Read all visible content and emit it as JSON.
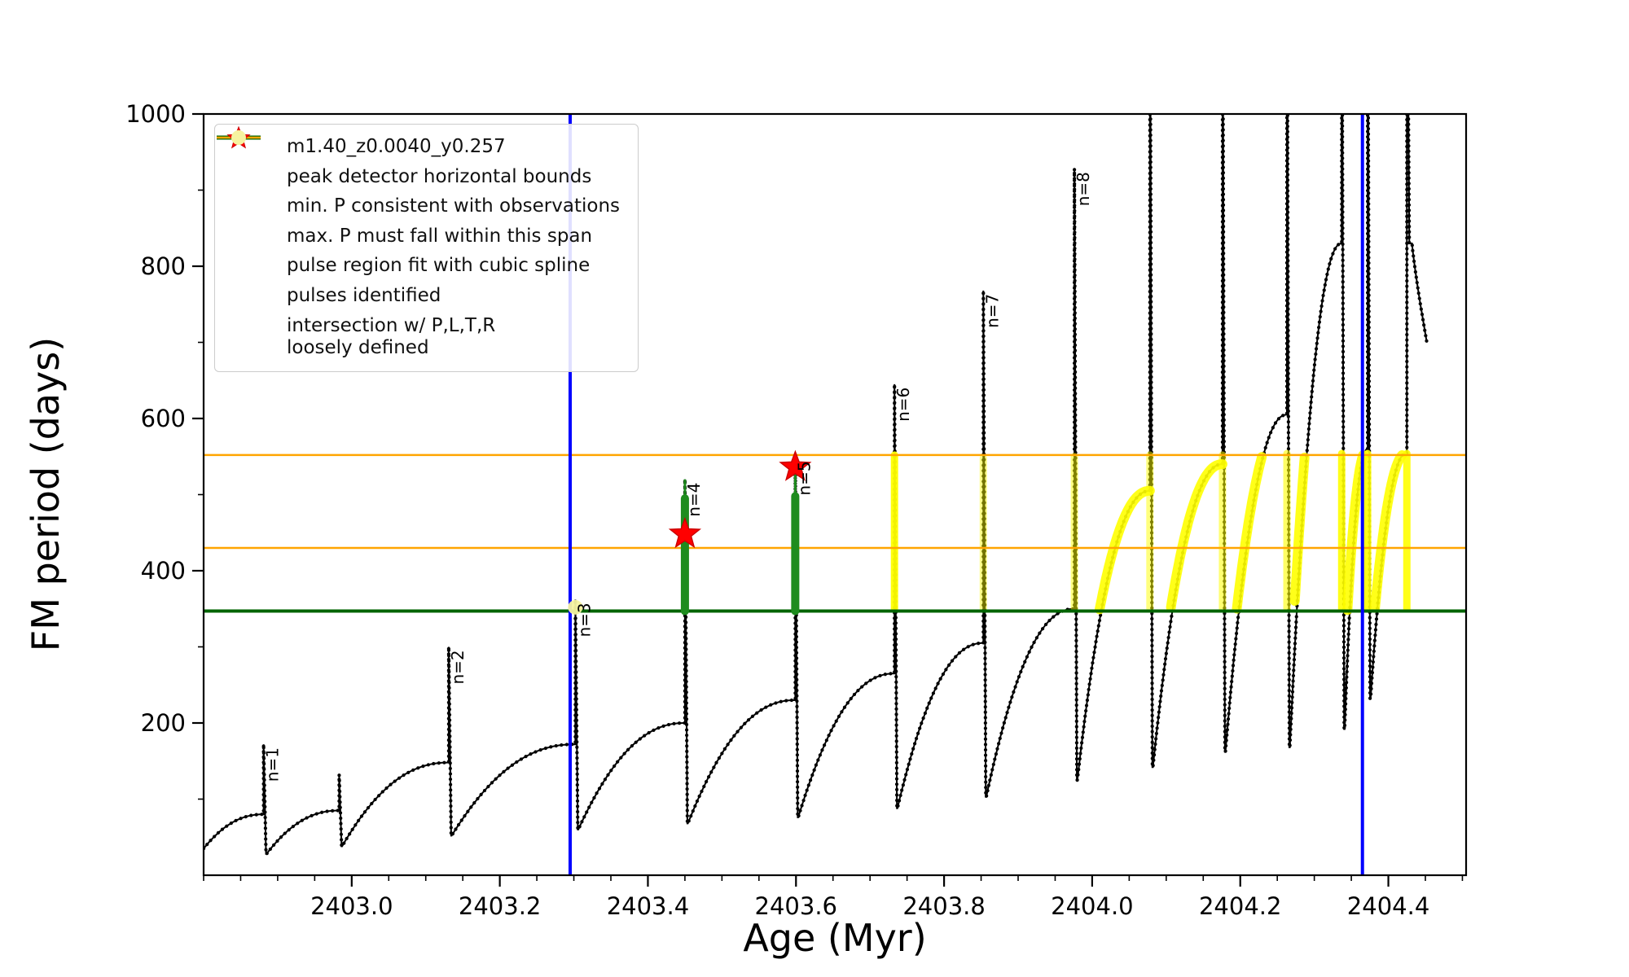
{
  "chart_data": {
    "type": "line",
    "title": "",
    "xlabel": "Age (Myr)",
    "ylabel": "FM period (days)",
    "xlim": [
      2402.8,
      2404.505
    ],
    "ylim": [
      0,
      1000
    ],
    "x_ticks": [
      2403.0,
      2403.2,
      2403.4,
      2403.6,
      2403.8,
      2404.0,
      2404.2,
      2404.4
    ],
    "x_tick_labels": [
      "2403.0",
      "2403.2",
      "2403.4",
      "2403.6",
      "2403.8",
      "2404.0",
      "2404.2",
      "2404.4"
    ],
    "y_ticks": [
      200,
      400,
      600,
      800,
      1000
    ],
    "y_tick_labels": [
      "200",
      "400",
      "600",
      "800",
      "1000"
    ],
    "x_minor_step": 0.05,
    "y_minor_step": 100,
    "grid": false,
    "legend_position": "upper-left",
    "series_label": "m1.40_z0.0040_y0.257",
    "peak_detector_bounds_x": [
      2403.295,
      2404.365
    ],
    "min_P_line_y": 347,
    "max_P_span_y": [
      430,
      552
    ],
    "cycles": [
      {
        "x_end": 2402.881,
        "y_min": 35,
        "y_end": 80,
        "peak": 172,
        "label": "n=1"
      },
      {
        "x_end": 2402.983,
        "y_min": 28,
        "y_end": 85,
        "peak": 132,
        "label": ""
      },
      {
        "x_end": 2403.131,
        "y_min": 38,
        "y_end": 148,
        "peak": 300,
        "label": "n=2"
      },
      {
        "x_end": 2403.302,
        "y_min": 52,
        "y_end": 172,
        "peak": 362,
        "label": "n=3"
      },
      {
        "x_end": 2403.45,
        "y_min": 60,
        "y_end": 200,
        "peak": 520,
        "label": "n=4"
      },
      {
        "x_end": 2403.599,
        "y_min": 68,
        "y_end": 230,
        "peak": 548,
        "label": "n=5"
      },
      {
        "x_end": 2403.733,
        "y_min": 76,
        "y_end": 265,
        "peak": 645,
        "label": "n=6"
      },
      {
        "x_end": 2403.853,
        "y_min": 88,
        "y_end": 305,
        "peak": 768,
        "label": "n=7"
      },
      {
        "x_end": 2403.976,
        "y_min": 103,
        "y_end": 350,
        "peak": 928,
        "label": "n=8"
      },
      {
        "x_end": 2404.078,
        "y_min": 125,
        "y_end": 505,
        "peak": 1300,
        "label": ""
      },
      {
        "x_end": 2404.176,
        "y_min": 142,
        "y_end": 540,
        "peak": 1300,
        "label": ""
      },
      {
        "x_end": 2404.263,
        "y_min": 162,
        "y_end": 605,
        "peak": 1300,
        "label": ""
      },
      {
        "x_end": 2404.337,
        "y_min": 168,
        "y_end": 830,
        "peak": 1300,
        "label": ""
      },
      {
        "x_end": 2404.372,
        "y_min": 192,
        "y_end": 560,
        "peak": 1300,
        "label": ""
      },
      {
        "x_end": 2404.425,
        "y_min": 232,
        "y_end": 555,
        "peak": 1300,
        "label": ""
      }
    ],
    "final_tail": {
      "x0": 2404.432,
      "y0": 830,
      "x1": 2404.452,
      "y1": 700
    },
    "green_segments": [
      {
        "x": 2403.45,
        "y0": 347,
        "y1": 495,
        "tip": 520
      },
      {
        "x": 2403.599,
        "y0": 347,
        "y1": 498,
        "tip": 540
      }
    ],
    "pulse_stars": [
      {
        "x": 2403.45,
        "y": 448
      },
      {
        "x": 2403.599,
        "y": 536
      }
    ],
    "intersection_dot": {
      "x": 2403.302,
      "y": 352
    },
    "yellow_segments": [
      {
        "x": 2403.733,
        "y0": 350,
        "y1": 552,
        "opacity": 0.95
      },
      {
        "x": 2403.853,
        "y0": 350,
        "y1": 548,
        "opacity": 0.45
      },
      {
        "x": 2403.976,
        "y0": 350,
        "y1": 550,
        "opacity": 0.5
      },
      {
        "x": 2404.078,
        "y0": 350,
        "y1": 552,
        "opacity": 0.5
      },
      {
        "x": 2404.176,
        "y0": 350,
        "y1": 552,
        "opacity": 0.55
      },
      {
        "x": 2404.263,
        "y0": 350,
        "y1": 554,
        "opacity": 0.6
      },
      {
        "x": 2404.337,
        "y0": 350,
        "y1": 554,
        "opacity": 0.9
      },
      {
        "x": 2404.372,
        "y0": 350,
        "y1": 554,
        "opacity": 0.9
      },
      {
        "x": 2404.425,
        "y0": 350,
        "y1": 554,
        "opacity": 0.9
      }
    ],
    "yellow_arcs": {
      "band": [
        347,
        552
      ],
      "cycle_indices": [
        9,
        10,
        11,
        12,
        13,
        14
      ]
    },
    "colors": {
      "series": "#000000",
      "peak_bounds": "#0000ff",
      "min_p": "#006400",
      "max_p": "#FFA500",
      "spline_fit_dot": "#90EE90",
      "pulse_segment": "#1e8c1e",
      "star": "#ff0000",
      "star_edge": "#cc0000",
      "intersection": "#f6f3a0",
      "highlight_yellow": "#ffff00",
      "axis": "#000000"
    },
    "legend": {
      "items": [
        {
          "marker": "line-dot",
          "color": "#000000",
          "lw": 2,
          "label": "m1.40_z0.0040_y0.257"
        },
        {
          "marker": "line",
          "color": "#0000ff",
          "lw": 5,
          "label": "peak detector horizontal bounds"
        },
        {
          "marker": "line",
          "color": "#006400",
          "lw": 5,
          "label": "min. P consistent with observations"
        },
        {
          "marker": "line",
          "color": "#FFA500",
          "lw": 2.5,
          "label": "max. P must fall within this span"
        },
        {
          "marker": "dot",
          "color": "#90EE90",
          "size": 6,
          "label": "pulse region fit with cubic spline"
        },
        {
          "marker": "star",
          "color": "#ff0000",
          "size": 14,
          "label": "pulses identified"
        },
        {
          "marker": "dot",
          "color": "#f6f3a0",
          "size": 9,
          "label": "intersection w/ P,L,T,R\nloosely defined"
        }
      ]
    }
  }
}
